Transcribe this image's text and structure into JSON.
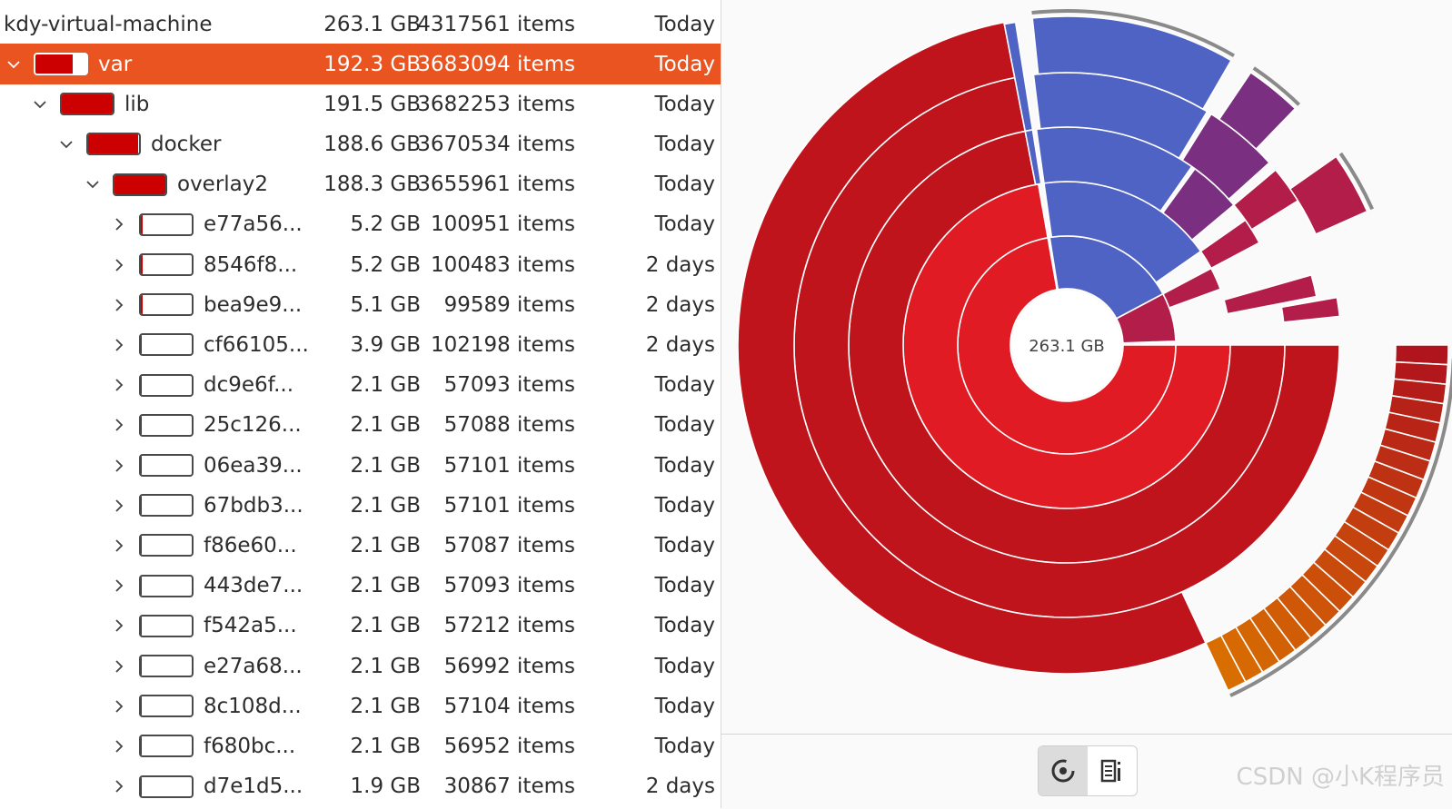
{
  "tree": {
    "root": {
      "name": "kdy-virtual-machine",
      "size": "263.1 GB",
      "items": "4317561 items",
      "date": "Today"
    },
    "rows": [
      {
        "name": "var",
        "size": "192.3 GB",
        "items": "3683094 items",
        "date": "Today",
        "depth": 0,
        "expanded": true,
        "fill": 0.73,
        "selected": true
      },
      {
        "name": "lib",
        "size": "191.5 GB",
        "items": "3682253 items",
        "date": "Today",
        "depth": 1,
        "expanded": true,
        "fill": 1.0,
        "selected": false
      },
      {
        "name": "docker",
        "size": "188.6 GB",
        "items": "3670534 items",
        "date": "Today",
        "depth": 2,
        "expanded": true,
        "fill": 0.98,
        "selected": false
      },
      {
        "name": "overlay2",
        "size": "188.3 GB",
        "items": "3655961 items",
        "date": "Today",
        "depth": 3,
        "expanded": true,
        "fill": 1.0,
        "selected": false
      },
      {
        "name": "e77a56...",
        "size": "5.2 GB",
        "items": "100951 items",
        "date": "Today",
        "depth": 4,
        "expanded": false,
        "fill": 0.03,
        "selected": false
      },
      {
        "name": "8546f8...",
        "size": "5.2 GB",
        "items": "100483 items",
        "date": "2 days",
        "depth": 4,
        "expanded": false,
        "fill": 0.03,
        "selected": false
      },
      {
        "name": "bea9e9...",
        "size": "5.1 GB",
        "items": "99589 items",
        "date": "2 days",
        "depth": 4,
        "expanded": false,
        "fill": 0.03,
        "selected": false
      },
      {
        "name": "cf66105...",
        "size": "3.9 GB",
        "items": "102198 items",
        "date": "2 days",
        "depth": 4,
        "expanded": false,
        "fill": 0.02,
        "selected": false
      },
      {
        "name": "dc9e6f...",
        "size": "2.1 GB",
        "items": "57093 items",
        "date": "Today",
        "depth": 4,
        "expanded": false,
        "fill": 0.01,
        "selected": false
      },
      {
        "name": "25c126...",
        "size": "2.1 GB",
        "items": "57088 items",
        "date": "Today",
        "depth": 4,
        "expanded": false,
        "fill": 0.01,
        "selected": false
      },
      {
        "name": "06ea39...",
        "size": "2.1 GB",
        "items": "57101 items",
        "date": "Today",
        "depth": 4,
        "expanded": false,
        "fill": 0.01,
        "selected": false
      },
      {
        "name": "67bdb3...",
        "size": "2.1 GB",
        "items": "57101 items",
        "date": "Today",
        "depth": 4,
        "expanded": false,
        "fill": 0.01,
        "selected": false
      },
      {
        "name": "f86e60...",
        "size": "2.1 GB",
        "items": "57087 items",
        "date": "Today",
        "depth": 4,
        "expanded": false,
        "fill": 0.01,
        "selected": false
      },
      {
        "name": "443de7...",
        "size": "2.1 GB",
        "items": "57093 items",
        "date": "Today",
        "depth": 4,
        "expanded": false,
        "fill": 0.01,
        "selected": false
      },
      {
        "name": "f542a5...",
        "size": "2.1 GB",
        "items": "57212 items",
        "date": "Today",
        "depth": 4,
        "expanded": false,
        "fill": 0.01,
        "selected": false
      },
      {
        "name": "e27a68...",
        "size": "2.1 GB",
        "items": "56992 items",
        "date": "Today",
        "depth": 4,
        "expanded": false,
        "fill": 0.01,
        "selected": false
      },
      {
        "name": "8c108d...",
        "size": "2.1 GB",
        "items": "57104 items",
        "date": "Today",
        "depth": 4,
        "expanded": false,
        "fill": 0.01,
        "selected": false
      },
      {
        "name": "f680bc...",
        "size": "2.1 GB",
        "items": "56952 items",
        "date": "Today",
        "depth": 4,
        "expanded": false,
        "fill": 0.01,
        "selected": false
      },
      {
        "name": "d7e1d5...",
        "size": "1.9 GB",
        "items": "30867 items",
        "date": "2 days",
        "depth": 4,
        "expanded": false,
        "fill": 0.01,
        "selected": false
      }
    ]
  },
  "chart": {
    "center_label": "263.1 GB",
    "colors": {
      "red_inner": "#e01b24",
      "red_outer": "#c0141c",
      "blue": "#4f63c4",
      "purple": "#7a2f80",
      "crimson": "#b31d4a",
      "orange": "#d86d00",
      "rim": "#8a8a8a"
    }
  },
  "footer": {
    "icons": [
      "ring-chart-icon",
      "treemap-icon"
    ],
    "active_view": "ring-chart"
  },
  "watermark": "CSDN @小K程序员",
  "icons": {
    "expanded": "chevron-down-icon",
    "collapsed": "chevron-right-icon"
  }
}
